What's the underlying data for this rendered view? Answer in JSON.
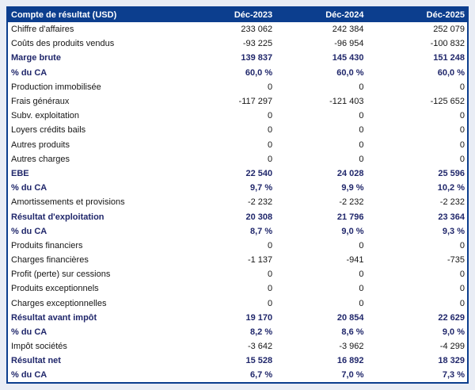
{
  "table": {
    "title": "Compte de résultat (USD)",
    "header": {
      "label": "Compte de résultat (USD)",
      "columns": [
        "Déc-2023",
        "Déc-2024",
        "Déc-2025"
      ]
    },
    "rows": [
      {
        "label": "Chiffre d'affaires",
        "values": [
          "233 062",
          "242 384",
          "252 079"
        ],
        "style": "normal"
      },
      {
        "label": "Coûts des produits vendus",
        "values": [
          "-93 225",
          "-96 954",
          "-100 832"
        ],
        "style": "normal"
      },
      {
        "label": "Marge brute",
        "values": [
          "139 837",
          "145 430",
          "151 248"
        ],
        "style": "bold"
      },
      {
        "label": "% du CA",
        "values": [
          "60,0 %",
          "60,0 %",
          "60,0 %"
        ],
        "style": "bold"
      },
      {
        "label": "Production immobilisée",
        "values": [
          "0",
          "0",
          "0"
        ],
        "style": "normal"
      },
      {
        "label": "Frais généraux",
        "values": [
          "-117 297",
          "-121 403",
          "-125 652"
        ],
        "style": "normal"
      },
      {
        "label": "Subv. exploitation",
        "values": [
          "0",
          "0",
          "0"
        ],
        "style": "normal"
      },
      {
        "label": "Loyers crédits bails",
        "values": [
          "0",
          "0",
          "0"
        ],
        "style": "normal"
      },
      {
        "label": "Autres produits",
        "values": [
          "0",
          "0",
          "0"
        ],
        "style": "normal"
      },
      {
        "label": "Autres charges",
        "values": [
          "0",
          "0",
          "0"
        ],
        "style": "normal"
      },
      {
        "label": "EBE",
        "values": [
          "22 540",
          "24 028",
          "25 596"
        ],
        "style": "bold"
      },
      {
        "label": "% du CA",
        "values": [
          "9,7 %",
          "9,9 %",
          "10,2 %"
        ],
        "style": "bold"
      },
      {
        "label": "Amortissements et provisions",
        "values": [
          "-2 232",
          "-2 232",
          "-2 232"
        ],
        "style": "normal"
      },
      {
        "label": "Résultat d'exploitation",
        "values": [
          "20 308",
          "21 796",
          "23 364"
        ],
        "style": "bold"
      },
      {
        "label": "% du CA",
        "values": [
          "8,7 %",
          "9,0 %",
          "9,3 %"
        ],
        "style": "bold"
      },
      {
        "label": "Produits financiers",
        "values": [
          "0",
          "0",
          "0"
        ],
        "style": "normal"
      },
      {
        "label": "Charges financières",
        "values": [
          "-1 137",
          "-941",
          "-735"
        ],
        "style": "normal"
      },
      {
        "label": "Profit (perte) sur cessions",
        "values": [
          "0",
          "0",
          "0"
        ],
        "style": "normal"
      },
      {
        "label": "Produits exceptionnels",
        "values": [
          "0",
          "0",
          "0"
        ],
        "style": "normal"
      },
      {
        "label": "Charges exceptionnelles",
        "values": [
          "0",
          "0",
          "0"
        ],
        "style": "normal"
      },
      {
        "label": "Résultat avant impôt",
        "values": [
          "19 170",
          "20 854",
          "22 629"
        ],
        "style": "bold"
      },
      {
        "label": "% du CA",
        "values": [
          "8,2 %",
          "8,6 %",
          "9,0 %"
        ],
        "style": "bold"
      },
      {
        "label": "Impôt sociétés",
        "values": [
          "-3 642",
          "-3 962",
          "-4 299"
        ],
        "style": "normal"
      },
      {
        "label": "Résultat net",
        "values": [
          "15 528",
          "16 892",
          "18 329"
        ],
        "style": "bold"
      },
      {
        "label": "% du CA",
        "values": [
          "6,7 %",
          "7,0 %",
          "7,3 %"
        ],
        "style": "bold"
      }
    ],
    "colors": {
      "header_background": "#0c3e8e",
      "border": "#0c3e8e",
      "bold_text": "#20276b",
      "normal_text": "#161616",
      "page_background": "#e9edf5",
      "table_background": "#ffffff",
      "header_text": "#ffffff"
    }
  },
  "chart_data": {
    "type": "table",
    "title": "Compte de résultat (USD)",
    "columns": [
      "Déc-2023",
      "Déc-2024",
      "Déc-2025"
    ],
    "rows": [
      {
        "label": "Chiffre d'affaires",
        "format": "number",
        "values": [
          233062,
          242384,
          252079
        ]
      },
      {
        "label": "Coûts des produits vendus",
        "format": "number",
        "values": [
          -93225,
          -96954,
          -100832
        ]
      },
      {
        "label": "Marge brute",
        "format": "number",
        "values": [
          139837,
          145430,
          151248
        ]
      },
      {
        "label": "% du CA",
        "format": "percent",
        "values": [
          60.0,
          60.0,
          60.0
        ]
      },
      {
        "label": "Production immobilisée",
        "format": "number",
        "values": [
          0,
          0,
          0
        ]
      },
      {
        "label": "Frais généraux",
        "format": "number",
        "values": [
          -117297,
          -121403,
          -125652
        ]
      },
      {
        "label": "Subv. exploitation",
        "format": "number",
        "values": [
          0,
          0,
          0
        ]
      },
      {
        "label": "Loyers crédits bails",
        "format": "number",
        "values": [
          0,
          0,
          0
        ]
      },
      {
        "label": "Autres produits",
        "format": "number",
        "values": [
          0,
          0,
          0
        ]
      },
      {
        "label": "Autres charges",
        "format": "number",
        "values": [
          0,
          0,
          0
        ]
      },
      {
        "label": "EBE",
        "format": "number",
        "values": [
          22540,
          24028,
          25596
        ]
      },
      {
        "label": "% du CA",
        "format": "percent",
        "values": [
          9.7,
          9.9,
          10.2
        ]
      },
      {
        "label": "Amortissements et provisions",
        "format": "number",
        "values": [
          -2232,
          -2232,
          -2232
        ]
      },
      {
        "label": "Résultat d'exploitation",
        "format": "number",
        "values": [
          20308,
          21796,
          23364
        ]
      },
      {
        "label": "% du CA",
        "format": "percent",
        "values": [
          8.7,
          9.0,
          9.3
        ]
      },
      {
        "label": "Produits financiers",
        "format": "number",
        "values": [
          0,
          0,
          0
        ]
      },
      {
        "label": "Charges financières",
        "format": "number",
        "values": [
          -1137,
          -941,
          -735
        ]
      },
      {
        "label": "Profit (perte) sur cessions",
        "format": "number",
        "values": [
          0,
          0,
          0
        ]
      },
      {
        "label": "Produits exceptionnels",
        "format": "number",
        "values": [
          0,
          0,
          0
        ]
      },
      {
        "label": "Charges exceptionnelles",
        "format": "number",
        "values": [
          0,
          0,
          0
        ]
      },
      {
        "label": "Résultat avant impôt",
        "format": "number",
        "values": [
          19170,
          20854,
          22629
        ]
      },
      {
        "label": "% du CA",
        "format": "percent",
        "values": [
          8.2,
          8.6,
          9.0
        ]
      },
      {
        "label": "Impôt sociétés",
        "format": "number",
        "values": [
          -3642,
          -3962,
          -4299
        ]
      },
      {
        "label": "Résultat net",
        "format": "number",
        "values": [
          15528,
          16892,
          18329
        ]
      },
      {
        "label": "% du CA",
        "format": "percent",
        "values": [
          6.7,
          7.0,
          7.3
        ]
      }
    ]
  }
}
